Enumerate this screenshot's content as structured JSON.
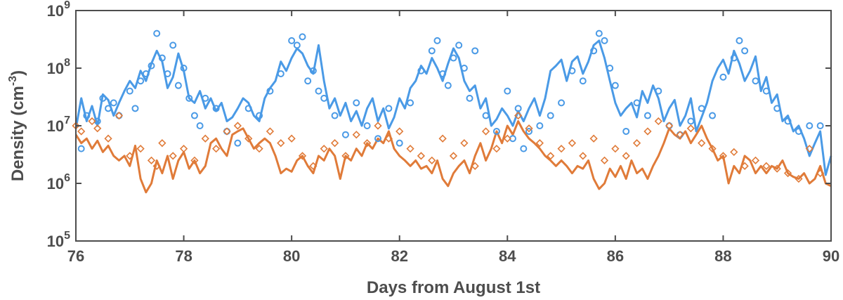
{
  "chart_data": {
    "type": "line",
    "xlabel": "Days from August 1st",
    "ylabel": {
      "prefix": "Density (cm",
      "exponent": "-3",
      "suffix": ")"
    },
    "xlim": [
      76,
      90
    ],
    "ylim": [
      100000,
      1000000000
    ],
    "yscale": "log",
    "xticks": [
      "76",
      "78",
      "80",
      "82",
      "84",
      "86",
      "88",
      "90"
    ],
    "yticks": [
      {
        "base": "10",
        "exp": "5",
        "value": 100000
      },
      {
        "base": "10",
        "exp": "6",
        "value": 1000000
      },
      {
        "base": "10",
        "exp": "7",
        "value": 10000000
      },
      {
        "base": "10",
        "exp": "8",
        "value": 100000000
      },
      {
        "base": "10",
        "exp": "9",
        "value": 1000000000
      }
    ],
    "grid": false,
    "colors": {
      "blue": "#4a9ae6",
      "orange": "#e07b39",
      "axis": "#4d4d4d"
    },
    "series": [
      {
        "kind": "line",
        "color": "blue",
        "x": [
          76.0,
          76.1,
          76.2,
          76.3,
          76.4,
          76.5,
          76.6,
          76.7,
          76.8,
          76.9,
          77.0,
          77.1,
          77.2,
          77.3,
          77.4,
          77.5,
          77.6,
          77.7,
          77.8,
          77.9,
          78.0,
          78.1,
          78.2,
          78.3,
          78.4,
          78.5,
          78.6,
          78.7,
          78.8,
          78.9,
          79.0,
          79.1,
          79.2,
          79.3,
          79.4,
          79.5,
          79.6,
          79.7,
          79.8,
          79.9,
          80.0,
          80.1,
          80.2,
          80.3,
          80.4,
          80.5,
          80.6,
          80.7,
          80.8,
          80.9,
          81.0,
          81.1,
          81.2,
          81.3,
          81.4,
          81.5,
          81.6,
          81.7,
          81.8,
          81.9,
          82.0,
          82.1,
          82.2,
          82.3,
          82.4,
          82.5,
          82.6,
          82.7,
          82.8,
          82.9,
          83.0,
          83.1,
          83.2,
          83.3,
          83.4,
          83.5,
          83.6,
          83.7,
          83.8,
          83.9,
          84.0,
          84.1,
          84.2,
          84.3,
          84.4,
          84.5,
          84.6,
          84.7,
          84.8,
          84.9,
          85.0,
          85.1,
          85.2,
          85.3,
          85.4,
          85.5,
          85.6,
          85.7,
          85.8,
          85.9,
          86.0,
          86.1,
          86.2,
          86.3,
          86.4,
          86.5,
          86.6,
          86.7,
          86.8,
          86.9,
          87.0,
          87.1,
          87.2,
          87.3,
          87.4,
          87.5,
          87.6,
          87.7,
          87.8,
          87.9,
          88.0,
          88.1,
          88.2,
          88.3,
          88.4,
          88.5,
          88.6,
          88.7,
          88.8,
          88.9,
          89.0,
          89.1,
          89.2,
          89.3,
          89.4,
          89.5,
          89.6,
          89.7,
          89.8,
          89.9,
          90.0
        ],
        "y": [
          9000000,
          30000000,
          12000000,
          22000000,
          10000000,
          35000000,
          28000000,
          15000000,
          25000000,
          40000000,
          60000000,
          45000000,
          90000000,
          60000000,
          120000000,
          200000000,
          130000000,
          45000000,
          70000000,
          180000000,
          90000000,
          30000000,
          25000000,
          40000000,
          20000000,
          30000000,
          18000000,
          25000000,
          12000000,
          14000000,
          20000000,
          30000000,
          25000000,
          15000000,
          12000000,
          30000000,
          45000000,
          60000000,
          130000000,
          90000000,
          150000000,
          220000000,
          180000000,
          110000000,
          80000000,
          250000000,
          60000000,
          20000000,
          30000000,
          15000000,
          25000000,
          12000000,
          18000000,
          10000000,
          20000000,
          30000000,
          12000000,
          20000000,
          9000000,
          14000000,
          30000000,
          20000000,
          45000000,
          60000000,
          110000000,
          80000000,
          150000000,
          100000000,
          60000000,
          120000000,
          220000000,
          150000000,
          60000000,
          40000000,
          50000000,
          20000000,
          30000000,
          10000000,
          13000000,
          20000000,
          15000000,
          10000000,
          18000000,
          12000000,
          20000000,
          30000000,
          15000000,
          30000000,
          90000000,
          110000000,
          140000000,
          60000000,
          130000000,
          160000000,
          80000000,
          130000000,
          250000000,
          300000000,
          150000000,
          60000000,
          25000000,
          15000000,
          20000000,
          25000000,
          14000000,
          40000000,
          25000000,
          50000000,
          30000000,
          12000000,
          20000000,
          28000000,
          10000000,
          15000000,
          30000000,
          8000000,
          14000000,
          25000000,
          60000000,
          100000000,
          140000000,
          80000000,
          200000000,
          120000000,
          60000000,
          90000000,
          160000000,
          40000000,
          70000000,
          25000000,
          35000000,
          12000000,
          15000000,
          8000000,
          10000000,
          6000000,
          3000000,
          5000000,
          8000000,
          1400000,
          3000000
        ]
      },
      {
        "kind": "line",
        "color": "orange",
        "x": [
          76.0,
          76.1,
          76.2,
          76.3,
          76.4,
          76.5,
          76.6,
          76.7,
          76.8,
          76.9,
          77.0,
          77.1,
          77.2,
          77.3,
          77.4,
          77.5,
          77.6,
          77.7,
          77.8,
          77.9,
          78.0,
          78.1,
          78.2,
          78.3,
          78.4,
          78.5,
          78.6,
          78.7,
          78.8,
          78.9,
          79.0,
          79.1,
          79.2,
          79.3,
          79.4,
          79.5,
          79.6,
          79.7,
          79.8,
          79.9,
          80.0,
          80.1,
          80.2,
          80.3,
          80.4,
          80.5,
          80.6,
          80.7,
          80.8,
          80.9,
          81.0,
          81.1,
          81.2,
          81.3,
          81.4,
          81.5,
          81.6,
          81.7,
          81.8,
          81.9,
          82.0,
          82.1,
          82.2,
          82.3,
          82.4,
          82.5,
          82.6,
          82.7,
          82.8,
          82.9,
          83.0,
          83.1,
          83.2,
          83.3,
          83.4,
          83.5,
          83.6,
          83.7,
          83.8,
          83.9,
          84.0,
          84.1,
          84.2,
          84.3,
          84.4,
          84.5,
          84.6,
          84.7,
          84.8,
          84.9,
          85.0,
          85.1,
          85.2,
          85.3,
          85.4,
          85.5,
          85.6,
          85.7,
          85.8,
          85.9,
          86.0,
          86.1,
          86.2,
          86.3,
          86.4,
          86.5,
          86.6,
          86.7,
          86.8,
          86.9,
          87.0,
          87.1,
          87.2,
          87.3,
          87.4,
          87.5,
          87.6,
          87.7,
          87.8,
          87.9,
          88.0,
          88.1,
          88.2,
          88.3,
          88.4,
          88.5,
          88.6,
          88.7,
          88.8,
          88.9,
          89.0,
          89.1,
          89.2,
          89.3,
          89.4,
          89.5,
          89.6,
          89.7,
          89.8,
          89.9,
          90.0
        ],
        "y": [
          7000000,
          5000000,
          6000000,
          4000000,
          5500000,
          3500000,
          4500000,
          3000000,
          2500000,
          3000000,
          2000000,
          4500000,
          1200000,
          700000,
          1000000,
          2500000,
          1500000,
          3000000,
          1200000,
          2500000,
          3500000,
          1800000,
          2500000,
          1500000,
          2000000,
          5000000,
          6000000,
          4000000,
          3000000,
          7000000,
          8000000,
          9000000,
          6000000,
          4000000,
          5000000,
          6000000,
          5000000,
          3000000,
          1500000,
          1800000,
          1600000,
          2500000,
          3000000,
          2000000,
          1500000,
          3000000,
          2500000,
          4000000,
          3000000,
          1200000,
          3000000,
          2500000,
          4000000,
          3000000,
          5000000,
          4000000,
          6000000,
          5000000,
          8000000,
          4000000,
          3000000,
          2500000,
          2000000,
          2500000,
          1800000,
          2000000,
          1500000,
          2500000,
          1200000,
          900000,
          1500000,
          2000000,
          2500000,
          1500000,
          3000000,
          5000000,
          2500000,
          4000000,
          8000000,
          5000000,
          10000000,
          7000000,
          12000000,
          8000000,
          6000000,
          5000000,
          4000000,
          3000000,
          2500000,
          2000000,
          2500000,
          2000000,
          1500000,
          2000000,
          1800000,
          2500000,
          1200000,
          800000,
          1000000,
          1800000,
          1300000,
          2000000,
          1200000,
          2500000,
          1500000,
          1800000,
          1200000,
          2000000,
          3000000,
          5000000,
          9000000,
          7000000,
          6000000,
          8000000,
          5000000,
          7000000,
          10000000,
          6000000,
          4000000,
          2500000,
          3000000,
          1000000,
          2000000,
          1500000,
          3000000,
          2500000,
          1500000,
          2000000,
          1500000,
          2000000,
          1800000,
          2500000,
          1500000,
          1300000,
          1200000,
          1500000,
          1000000,
          1200000,
          2000000,
          1000000,
          900000
        ]
      },
      {
        "kind": "markers",
        "marker": "circle",
        "color": "blue",
        "x": [
          76.1,
          76.2,
          76.4,
          76.5,
          76.6,
          76.7,
          76.8,
          77.0,
          77.1,
          77.2,
          77.3,
          77.4,
          77.5,
          77.6,
          77.7,
          77.8,
          77.9,
          78.0,
          78.1,
          78.2,
          78.3,
          78.4,
          78.6,
          78.8,
          79.0,
          79.2,
          79.4,
          79.6,
          79.8,
          80.0,
          80.1,
          80.2,
          80.3,
          80.4,
          80.5,
          80.6,
          80.8,
          81.0,
          81.2,
          81.4,
          81.6,
          81.8,
          82.0,
          82.2,
          82.4,
          82.6,
          82.7,
          82.8,
          82.9,
          83.0,
          83.1,
          83.2,
          83.3,
          83.4,
          83.6,
          83.8,
          84.0,
          84.1,
          84.2,
          84.3,
          84.4,
          84.6,
          84.8,
          85.0,
          85.2,
          85.4,
          85.6,
          85.7,
          85.8,
          85.9,
          86.0,
          86.2,
          86.4,
          86.6,
          86.8,
          87.0,
          87.2,
          87.4,
          87.6,
          87.8,
          88.0,
          88.2,
          88.3,
          88.4,
          88.6,
          88.8,
          89.0,
          89.2,
          89.4,
          89.6,
          89.8
        ],
        "y": [
          4000000,
          15000000,
          12000000,
          30000000,
          20000000,
          25000000,
          15000000,
          40000000,
          20000000,
          60000000,
          80000000,
          110000000,
          400000000,
          150000000,
          80000000,
          250000000,
          50000000,
          100000000,
          30000000,
          15000000,
          10000000,
          30000000,
          20000000,
          8000000,
          5000000,
          20000000,
          15000000,
          40000000,
          80000000,
          300000000,
          250000000,
          350000000,
          60000000,
          90000000,
          40000000,
          30000000,
          15000000,
          7000000,
          25000000,
          10000000,
          6000000,
          20000000,
          5000000,
          25000000,
          90000000,
          200000000,
          300000000,
          80000000,
          50000000,
          150000000,
          250000000,
          100000000,
          30000000,
          200000000,
          15000000,
          8000000,
          40000000,
          6000000,
          20000000,
          4000000,
          8000000,
          10000000,
          15000000,
          25000000,
          90000000,
          60000000,
          200000000,
          400000000,
          300000000,
          100000000,
          50000000,
          8000000,
          25000000,
          15000000,
          40000000,
          10000000,
          7000000,
          12000000,
          20000000,
          15000000,
          70000000,
          150000000,
          300000000,
          200000000,
          60000000,
          40000000,
          20000000,
          12000000,
          8000000,
          10000000,
          10000000
        ]
      },
      {
        "kind": "markers",
        "marker": "diamond",
        "color": "orange",
        "x": [
          76.0,
          76.1,
          76.3,
          76.4,
          76.6,
          76.8,
          77.0,
          77.2,
          77.4,
          77.5,
          77.6,
          77.8,
          78.0,
          78.2,
          78.4,
          78.6,
          78.8,
          79.0,
          79.2,
          79.4,
          79.6,
          79.8,
          80.0,
          80.2,
          80.4,
          80.6,
          80.8,
          81.0,
          81.2,
          81.4,
          81.6,
          81.8,
          82.0,
          82.2,
          82.4,
          82.6,
          82.8,
          83.0,
          83.2,
          83.4,
          83.6,
          83.8,
          84.0,
          84.2,
          84.4,
          84.6,
          84.8,
          85.0,
          85.2,
          85.4,
          85.6,
          85.8,
          86.0,
          86.2,
          86.4,
          86.6,
          86.8,
          87.0,
          87.2,
          87.4,
          87.6,
          87.8,
          88.0,
          88.2,
          88.4,
          88.6,
          88.8,
          89.0,
          89.2,
          89.4,
          89.6,
          89.8
        ],
        "y": [
          10000000,
          8000000,
          12000000,
          9000000,
          6000000,
          15000000,
          3000000,
          4000000,
          2500000,
          2000000,
          5000000,
          3000000,
          4000000,
          2500000,
          6000000,
          4000000,
          8000000,
          10000000,
          6000000,
          4000000,
          8000000,
          5000000,
          6000000,
          3000000,
          2000000,
          4000000,
          5000000,
          3000000,
          7000000,
          5000000,
          10000000,
          6000000,
          8000000,
          4000000,
          3000000,
          2500000,
          6000000,
          3000000,
          5000000,
          2000000,
          8000000,
          4000000,
          6000000,
          15000000,
          9000000,
          5000000,
          3000000,
          4000000,
          5000000,
          3000000,
          6000000,
          2500000,
          4000000,
          3000000,
          5000000,
          8000000,
          12000000,
          10000000,
          7000000,
          9000000,
          5000000,
          4000000,
          3000000,
          3500000,
          2000000,
          2500000,
          2000000,
          1800000,
          1500000,
          1200000,
          4000000,
          1500000
        ]
      }
    ]
  }
}
